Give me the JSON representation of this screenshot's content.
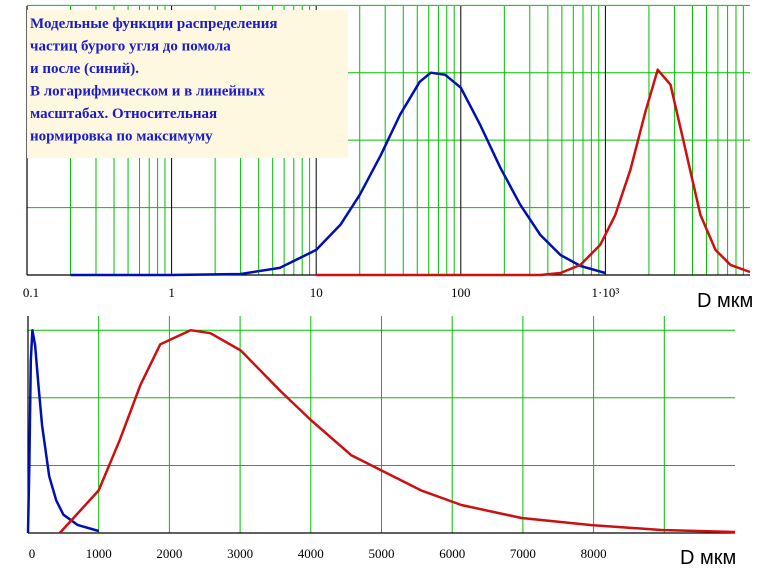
{
  "chart_data": [
    {
      "type": "line",
      "xscale": "log",
      "annotation_lines": [
        "Модельные функции распределения",
        "частиц бурого угля до помола",
        "и после (синий).",
        "В  логарифмическом и в линейных",
        "масштабах. Относительная",
        "нормировка по максимуму"
      ],
      "xlabel": "D мкм",
      "xlim": [
        0.1,
        10000
      ],
      "ylim": [
        0,
        1.33
      ],
      "xticks": [
        0.1,
        1,
        10,
        100,
        {
          "value": 1000,
          "label": "1·10³"
        }
      ],
      "xminor": [
        0.2,
        0.3,
        0.4,
        0.5,
        0.6,
        0.7,
        0.8,
        0.9,
        2,
        3,
        4,
        5,
        6,
        7,
        8,
        9,
        20,
        30,
        40,
        50,
        60,
        70,
        80,
        90,
        200,
        300,
        400,
        500,
        600,
        700,
        800,
        900,
        2000,
        3000,
        4000,
        5000,
        6000,
        7000,
        8000,
        9000
      ],
      "yticks": [
        0,
        0.333,
        0.667,
        1,
        1.333
      ],
      "grid": true,
      "grid_color": "#00c000",
      "major_grid_color": "#000000",
      "series": [
        {
          "color": "#0010b0",
          "x": [
            0.2,
            1,
            3,
            5.6,
            10,
            14.7,
            20,
            28,
            38,
            52,
            62,
            78,
            100,
            136,
            188,
            258,
            355,
            489,
            672,
            1000
          ],
          "values": [
            0,
            0,
            0.005,
            0.035,
            0.124,
            0.248,
            0.396,
            0.594,
            0.792,
            0.955,
            1,
            0.99,
            0.926,
            0.743,
            0.53,
            0.347,
            0.198,
            0.099,
            0.045,
            0.01
          ]
        },
        {
          "color": "#cc1010",
          "x": [
            10,
            355,
            489,
            672,
            920,
            1170,
            1490,
            1890,
            2300,
            2820,
            3580,
            4540,
            5770,
            7330,
            10000
          ],
          "values": [
            0,
            0,
            0.01,
            0.05,
            0.149,
            0.297,
            0.52,
            0.807,
            1.015,
            0.941,
            0.619,
            0.297,
            0.124,
            0.05,
            0.015
          ]
        }
      ]
    },
    {
      "type": "line",
      "xscale": "linear",
      "xlabel": "D мкм",
      "xlim": [
        0,
        10000
      ],
      "ylim": [
        0,
        1.07
      ],
      "xticks": [
        0,
        1000,
        2000,
        3000,
        4000,
        5000,
        6000,
        7000,
        8000
      ],
      "xminor": [
        9000
      ],
      "yticks": [
        0,
        0.333,
        0.667,
        1
      ],
      "grid": true,
      "grid_color": "#00c000",
      "major_grid_color": "#00c000",
      "series": [
        {
          "color": "#0010b0",
          "x": [
            0,
            20,
            40,
            62,
            100,
            150,
            200,
            300,
            400,
            500,
            700,
            1000
          ],
          "values": [
            0,
            0.35,
            0.85,
            1,
            0.926,
            0.72,
            0.53,
            0.28,
            0.16,
            0.09,
            0.04,
            0.01
          ]
        },
        {
          "color": "#cc1010",
          "x": [
            450,
            1000,
            1300,
            1590,
            1870,
            2300,
            2580,
            3010,
            3570,
            4000,
            4570,
            4990,
            5560,
            6130,
            6980,
            7970,
            8960,
            10000
          ],
          "values": [
            0,
            0.21,
            0.46,
            0.73,
            0.93,
            1,
            0.985,
            0.9,
            0.7,
            0.557,
            0.384,
            0.31,
            0.21,
            0.138,
            0.074,
            0.039,
            0.015,
            0.005
          ]
        }
      ]
    }
  ]
}
